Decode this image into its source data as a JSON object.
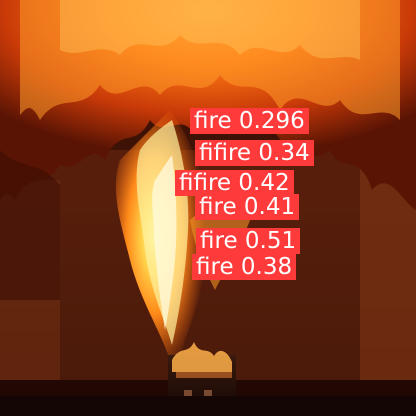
{
  "image": {
    "subject": "fire-detection-output"
  },
  "detections": [
    {
      "label": "fire 0.296",
      "class": "fire",
      "confidence": 0.296
    },
    {
      "label": "fifire 0.34",
      "class": "fire",
      "confidence": 0.34
    },
    {
      "label": "fifire 0.42",
      "class": "fire",
      "confidence": 0.42
    },
    {
      "label": "fire 0.41",
      "class": "fire",
      "confidence": 0.41
    },
    {
      "label": "fire 0.51",
      "class": "fire",
      "confidence": 0.51
    },
    {
      "label": "fire 0.38",
      "class": "fire",
      "confidence": 0.38
    }
  ],
  "colors": {
    "box": "#ff3a3a",
    "label_text": "#ffffff"
  }
}
